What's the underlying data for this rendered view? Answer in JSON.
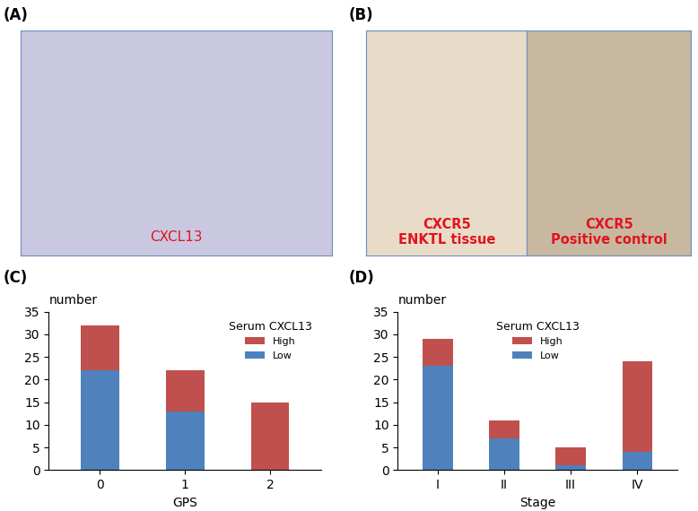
{
  "images": [
    {
      "panel": "(A)",
      "labels": [
        "CXCL13"
      ]
    },
    {
      "panel": "(B)",
      "labels": [
        "CXCR5\nENKTL tissue",
        "CXCR5\nPositive control"
      ]
    }
  ],
  "chart_data": [
    {
      "type": "bar",
      "panel": "(C)",
      "stacked": true,
      "y_label": "number",
      "x_label": "GPS",
      "legend_title": "Serum CXCL13",
      "legend": "upper right",
      "categories": [
        "0",
        "1",
        "2"
      ],
      "series": [
        {
          "name": "Low",
          "color": "#4f81bd",
          "values": [
            22,
            13,
            0
          ]
        },
        {
          "name": "High",
          "color": "#c0504d",
          "values": [
            10,
            9,
            15
          ]
        }
      ],
      "ylim": [
        0,
        35
      ],
      "yticks": [
        0,
        5,
        10,
        15,
        20,
        25,
        30,
        35
      ]
    },
    {
      "type": "bar",
      "panel": "(D)",
      "stacked": true,
      "y_label": "number",
      "x_label": "Stage",
      "legend_title": "Serum CXCL13",
      "legend": "upper center",
      "categories": [
        "I",
        "II",
        "III",
        "IV"
      ],
      "series": [
        {
          "name": "Low",
          "color": "#4f81bd",
          "values": [
            23,
            7,
            1,
            4
          ]
        },
        {
          "name": "High",
          "color": "#c0504d",
          "values": [
            6,
            4,
            4,
            20
          ]
        }
      ],
      "ylim": [
        0,
        35
      ],
      "yticks": [
        0,
        5,
        10,
        15,
        20,
        25,
        30,
        35
      ]
    }
  ]
}
